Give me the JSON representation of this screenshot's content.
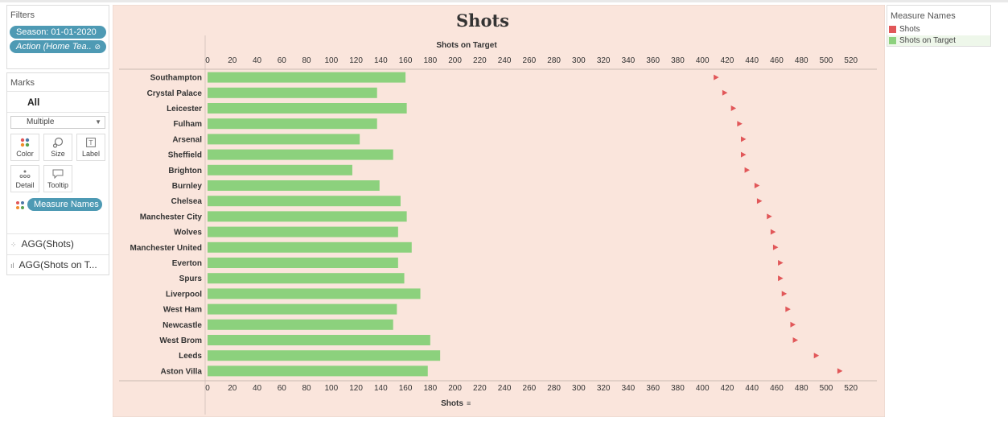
{
  "filters": {
    "title": "Filters",
    "items": [
      "Season: 01-01-2020",
      "Action (Home Tea.."
    ]
  },
  "marks": {
    "title": "Marks",
    "all_label": "All",
    "mark_type": "Multiple",
    "buttons": [
      {
        "label": "Color",
        "icon": "color-dots-icon"
      },
      {
        "label": "Size",
        "icon": "size-icon"
      },
      {
        "label": "Label",
        "icon": "label-icon"
      },
      {
        "label": "Detail",
        "icon": "detail-icon"
      },
      {
        "label": "Tooltip",
        "icon": "tooltip-icon"
      }
    ],
    "color_pill": "Measure Names",
    "agg_items": [
      "AGG(Shots)",
      "AGG(Shots on T..."
    ]
  },
  "legend": {
    "title": "Measure Names",
    "items": [
      {
        "label": "Shots",
        "color": "#e15759"
      },
      {
        "label": "Shots on Target",
        "color": "#8cd17d"
      }
    ]
  },
  "colors": {
    "chart_background": "#fae5dc",
    "bar": "#8cd17d",
    "shots_mark": "#e15759",
    "pill": "#4e9ab4"
  },
  "chart_data": {
    "type": "bar",
    "title": "Shots",
    "top_axis_label": "Shots on Target",
    "bottom_axis_label": "Shots",
    "xlim": [
      0,
      520
    ],
    "ticks": [
      0,
      20,
      40,
      60,
      80,
      100,
      120,
      140,
      160,
      180,
      200,
      220,
      240,
      260,
      280,
      300,
      320,
      340,
      360,
      380,
      400,
      420,
      440,
      460,
      480,
      500,
      520
    ],
    "categories": [
      "Southampton",
      "Crystal Palace",
      "Leicester",
      "Fulham",
      "Arsenal",
      "Sheffield",
      "Brighton",
      "Burnley",
      "Chelsea",
      "Manchester City",
      "Wolves",
      "Manchester United",
      "Everton",
      "Spurs",
      "Liverpool",
      "West Ham",
      "Newcastle",
      "West Brom",
      "Leeds",
      "Aston Villa"
    ],
    "series": [
      {
        "name": "Shots on Target",
        "type": "bar",
        "values": [
          160,
          137,
          161,
          137,
          123,
          150,
          117,
          139,
          156,
          161,
          154,
          165,
          154,
          159,
          172,
          153,
          150,
          180,
          188,
          178
        ]
      },
      {
        "name": "Shots",
        "type": "point",
        "values": [
          411,
          418,
          425,
          430,
          433,
          433,
          436,
          444,
          446,
          454,
          457,
          459,
          463,
          463,
          466,
          469,
          473,
          475,
          492,
          511
        ]
      }
    ],
    "legend_position": "right"
  }
}
